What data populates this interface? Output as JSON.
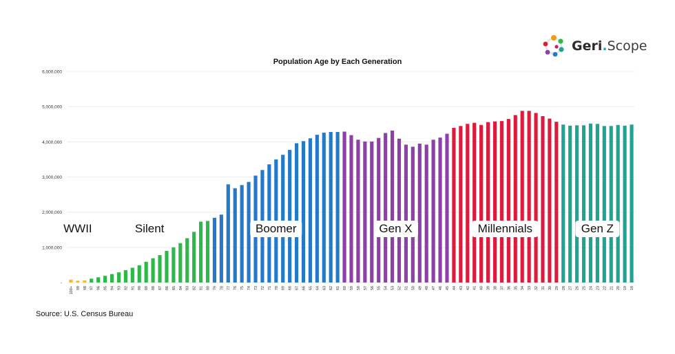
{
  "brand": {
    "name_bold": "Geri",
    "dot": ".",
    "name_rest": "Scope"
  },
  "source": "Source: U.S. Census Bureau",
  "chart_data": {
    "type": "bar",
    "title": "Population Age by Each Generation",
    "xlabel": "",
    "ylabel": "",
    "ylim": [
      0,
      6000000
    ],
    "yticks": [
      0,
      1000000,
      2000000,
      3000000,
      4000000,
      5000000,
      6000000
    ],
    "ytick_labels": [
      "-",
      "1,000,000",
      "2,000,000",
      "3,000,000",
      "4,000,000",
      "5,000,000",
      "6,000,000"
    ],
    "grid": true,
    "categories": [
      "100+",
      "99",
      "98",
      "97",
      "96",
      "95",
      "94",
      "93",
      "92",
      "91",
      "90",
      "89",
      "88",
      "87",
      "86",
      "85",
      "84",
      "83",
      "82",
      "81",
      "80",
      "79",
      "78",
      "77",
      "76",
      "75",
      "74",
      "73",
      "72",
      "71",
      "70",
      "69",
      "68",
      "67",
      "66",
      "65",
      "64",
      "63",
      "62",
      "61",
      "60",
      "59",
      "58",
      "57",
      "56",
      "55",
      "54",
      "53",
      "52",
      "51",
      "50",
      "49",
      "48",
      "47",
      "46",
      "45",
      "44",
      "43",
      "42",
      "41",
      "40",
      "39",
      "38",
      "37",
      "36",
      "35",
      "34",
      "33",
      "32",
      "31",
      "30",
      "29",
      "28",
      "27",
      "26",
      "25",
      "24",
      "23",
      "22",
      "21",
      "20",
      "19",
      "18"
    ],
    "values": [
      80000,
      50000,
      60000,
      110000,
      150000,
      190000,
      240000,
      290000,
      350000,
      420000,
      490000,
      590000,
      690000,
      780000,
      900000,
      1000000,
      1120000,
      1260000,
      1440000,
      1730000,
      1750000,
      1840000,
      1930000,
      2790000,
      2680000,
      2770000,
      2860000,
      3040000,
      3200000,
      3360000,
      3500000,
      3630000,
      3770000,
      3960000,
      4020000,
      4100000,
      4200000,
      4260000,
      4280000,
      4280000,
      4290000,
      4190000,
      4060000,
      4010000,
      4010000,
      4110000,
      4250000,
      4320000,
      4090000,
      3920000,
      3860000,
      3950000,
      3920000,
      4060000,
      4120000,
      4230000,
      4400000,
      4450000,
      4510000,
      4540000,
      4480000,
      4560000,
      4580000,
      4590000,
      4650000,
      4760000,
      4880000,
      4880000,
      4820000,
      4730000,
      4660000,
      4570000,
      4490000,
      4460000,
      4470000,
      4470000,
      4520000,
      4510000,
      4450000,
      4450000,
      4480000,
      4460000,
      4490000
    ],
    "series": [
      {
        "name": "WWII",
        "color": "#f7b731",
        "start": 0,
        "end": 2
      },
      {
        "name": "Silent",
        "color": "#2eb84a",
        "start": 3,
        "end": 20
      },
      {
        "name": "Boomer",
        "color": "#2479c9",
        "start": 21,
        "end": 39
      },
      {
        "name": "Gen X",
        "color": "#8e3fa9",
        "start": 40,
        "end": 55
      },
      {
        "name": "Millennials",
        "color": "#dd1c3b",
        "start": 56,
        "end": 71
      },
      {
        "name": "Gen Z",
        "color": "#1fa392",
        "start": 72,
        "end": 82
      }
    ]
  }
}
